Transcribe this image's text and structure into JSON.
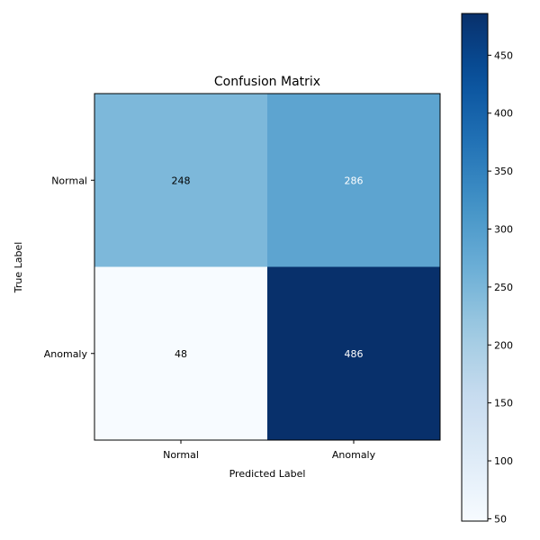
{
  "chart_data": {
    "type": "heatmap",
    "title": "Confusion Matrix",
    "xlabel": "Predicted Label",
    "ylabel": "True Label",
    "x_categories": [
      "Normal",
      "Anomaly"
    ],
    "y_categories": [
      "Normal",
      "Anomaly"
    ],
    "values": [
      [
        248,
        286
      ],
      [
        48,
        486
      ]
    ],
    "colormap": "Blues",
    "color_range": [
      48,
      486
    ],
    "colorbar": {
      "ticks": [
        50,
        100,
        150,
        200,
        250,
        300,
        350,
        400,
        450
      ],
      "tick_labels": [
        "50",
        "100",
        "150",
        "200",
        "250",
        "300",
        "350",
        "400",
        "450"
      ]
    },
    "grid": false,
    "legend": "none"
  }
}
